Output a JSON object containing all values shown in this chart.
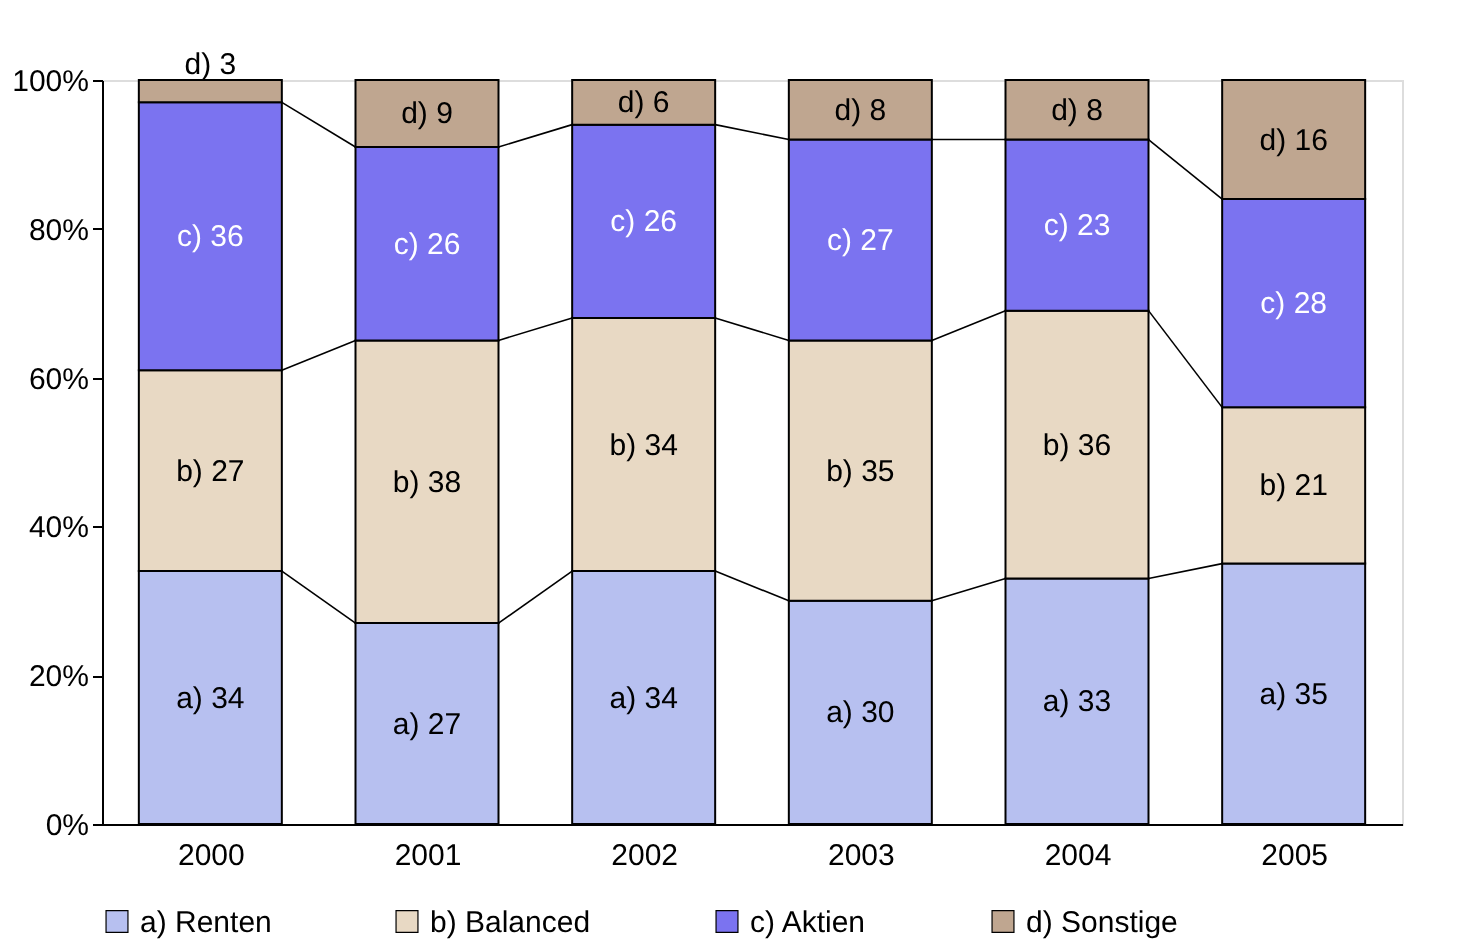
{
  "chart_data": {
    "type": "bar",
    "stacked": true,
    "categories": [
      "2000",
      "2001",
      "2002",
      "2003",
      "2004",
      "2005"
    ],
    "series": [
      {
        "name": "a) Renten",
        "color": "#b7c0f0",
        "values": [
          34,
          27,
          34,
          30,
          33,
          35
        ],
        "value_labels": [
          "a) 34",
          "a) 27",
          "a) 34",
          "a) 30",
          "a) 33",
          "a) 35"
        ]
      },
      {
        "name": "b) Balanced",
        "color": "#e8d9c4",
        "values": [
          27,
          38,
          34,
          35,
          36,
          21
        ],
        "value_labels": [
          "b) 27",
          "b) 38",
          "b) 34",
          "b) 35",
          "b) 36",
          "b) 21"
        ]
      },
      {
        "name": "c) Aktien",
        "color": "#7b73f0",
        "values": [
          36,
          26,
          26,
          27,
          23,
          28
        ],
        "value_labels": [
          "c) 36",
          "c) 26",
          "c) 26",
          "c) 27",
          "c) 23",
          "c) 28"
        ]
      },
      {
        "name": "d) Sonstige",
        "color": "#bfa690",
        "values": [
          3,
          9,
          6,
          8,
          8,
          16
        ],
        "value_labels": [
          "d) 3",
          "d) 9",
          "d) 6",
          "d) 8",
          "d) 8",
          "d) 16"
        ]
      }
    ],
    "ylim": [
      0,
      100
    ],
    "yticks": [
      {
        "value": 0,
        "label": "0%"
      },
      {
        "value": 20,
        "label": "20%"
      },
      {
        "value": 40,
        "label": "40%"
      },
      {
        "value": 60,
        "label": "60%"
      },
      {
        "value": 80,
        "label": "80%"
      },
      {
        "value": 100,
        "label": "100%"
      }
    ],
    "grid": false,
    "legend": "bottom"
  }
}
